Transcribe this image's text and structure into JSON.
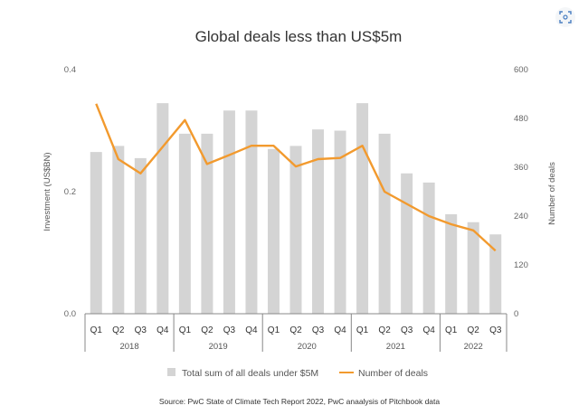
{
  "corner_icon": "expand-icon",
  "chart_data": {
    "type": "bar+line",
    "title": "Global deals less than US$5m",
    "ylabel_left": "Investment (US$BN)",
    "ylabel_right": "Number of deals",
    "ylim_left": [
      0,
      0.4
    ],
    "ylim_right": [
      0,
      600
    ],
    "yticks_left": [
      "0.0",
      "0.2",
      "0.4"
    ],
    "yticks_left_values": [
      0,
      0.2,
      0.4
    ],
    "yticks_right": [
      "0",
      "120",
      "240",
      "360",
      "480",
      "600"
    ],
    "yticks_right_values": [
      0,
      120,
      240,
      360,
      480,
      600
    ],
    "categories": [
      "Q1",
      "Q2",
      "Q3",
      "Q4",
      "Q1",
      "Q2",
      "Q3",
      "Q4",
      "Q1",
      "Q2",
      "Q3",
      "Q4",
      "Q1",
      "Q2",
      "Q3",
      "Q4",
      "Q1",
      "Q2",
      "Q3"
    ],
    "years": [
      "2018",
      "2019",
      "2020",
      "2021",
      "2022"
    ],
    "quarters_per_year": [
      4,
      4,
      4,
      4,
      3
    ],
    "series": [
      {
        "name": "Total sum of all deals under $5M",
        "type": "bar",
        "axis": "left",
        "color": "#d4d4d4",
        "values": [
          0.265,
          0.275,
          0.255,
          0.345,
          0.295,
          0.295,
          0.333,
          0.333,
          0.27,
          0.275,
          0.302,
          0.3,
          0.345,
          0.295,
          0.23,
          0.215,
          0.163,
          0.15,
          0.13
        ]
      },
      {
        "name": "Number of deals",
        "type": "line",
        "axis": "right",
        "color": "#f29a2e",
        "values": [
          516,
          380,
          345,
          410,
          476,
          368,
          390,
          413,
          413,
          362,
          380,
          383,
          413,
          300,
          270,
          240,
          220,
          205,
          155
        ]
      }
    ],
    "legend_position": "bottom",
    "grid": false
  },
  "source_text": "Source: PwC State of Climate Tech Report 2022, PwC anaalysis of Pitchbook data"
}
